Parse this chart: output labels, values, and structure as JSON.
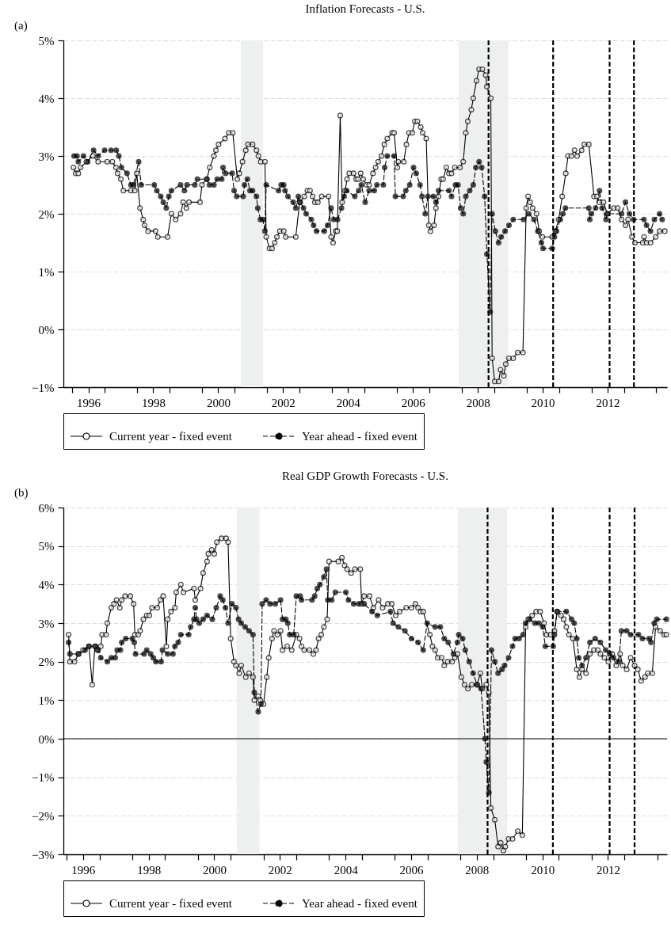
{
  "chart_data": [
    {
      "type": "line",
      "title": "Inflation Forecasts - U.S.",
      "annotations": [
        "(a)"
      ],
      "xlim": [
        1995.73,
        2014.33
      ],
      "xticks": [
        {
          "value": 1996,
          "label": null
        },
        {
          "value": 1996.5,
          "label": "1996"
        },
        {
          "value": 1997,
          "label": null
        },
        {
          "value": 1998,
          "label": null
        },
        {
          "value": 1998.5,
          "label": "1998"
        },
        {
          "value": 1999,
          "label": null
        },
        {
          "value": 2000,
          "label": null
        },
        {
          "value": 2000.5,
          "label": "2000"
        },
        {
          "value": 2001,
          "label": null
        },
        {
          "value": 2002,
          "label": null
        },
        {
          "value": 2002.5,
          "label": "2002"
        },
        {
          "value": 2003,
          "label": null
        },
        {
          "value": 2004,
          "label": null
        },
        {
          "value": 2004.5,
          "label": "2004"
        },
        {
          "value": 2005,
          "label": null
        },
        {
          "value": 2006,
          "label": null
        },
        {
          "value": 2006.5,
          "label": "2006"
        },
        {
          "value": 2007,
          "label": null
        },
        {
          "value": 2008,
          "label": null
        },
        {
          "value": 2008.5,
          "label": "2008"
        },
        {
          "value": 2009,
          "label": null
        },
        {
          "value": 2010,
          "label": null
        },
        {
          "value": 2010.5,
          "label": "2010"
        },
        {
          "value": 2011,
          "label": null
        },
        {
          "value": 2012,
          "label": null
        },
        {
          "value": 2012.5,
          "label": "2012"
        },
        {
          "value": 2013,
          "label": null
        },
        {
          "value": 2014,
          "label": null
        }
      ],
      "ylim": [
        -1,
        5
      ],
      "yticks": [
        {
          "value": -1,
          "label": "−1%"
        },
        {
          "value": 0,
          "label": "0%"
        },
        {
          "value": 1,
          "label": "1%"
        },
        {
          "value": 2,
          "label": "2%"
        },
        {
          "value": 3,
          "label": "3%"
        },
        {
          "value": 4,
          "label": "4%"
        },
        {
          "value": 5,
          "label": "5%"
        }
      ],
      "grid": "y",
      "legend": "bottom",
      "marker": "circle",
      "bands": [
        {
          "axis": "x",
          "from": 2001.2,
          "to": 2001.88,
          "color": "#eef0ef"
        },
        {
          "axis": "x",
          "from": 2007.91,
          "to": 2009.44,
          "color": "#eef0ef"
        }
      ],
      "ref_lines": [
        {
          "axis": "x",
          "value": 2008.83,
          "color": "#000000",
          "line_style": "dashed"
        },
        {
          "axis": "x",
          "value": 2010.82,
          "color": "#000000",
          "line_style": "dashed"
        },
        {
          "axis": "x",
          "value": 2012.56,
          "color": "#000000",
          "line_style": "dashed"
        },
        {
          "axis": "x",
          "value": 2013.31,
          "color": "#000000",
          "line_style": "dashed"
        }
      ],
      "series": [
        {
          "name": "Current year - fixed event",
          "color": "#000000",
          "line_style": "solid",
          "x": [
            1996.04,
            1996.11,
            1996.19,
            1996.26,
            1996.44,
            1996.64,
            1996.8,
            1997.08,
            1997.24,
            1997.35,
            1997.4,
            1997.5,
            1997.58,
            1997.81,
            1997.93,
            1997.99,
            1998.09,
            1998.19,
            1998.23,
            1998.34,
            1998.57,
            1998.64,
            1998.94,
            1999.06,
            1999.19,
            1999.34,
            1999.42,
            1999.52,
            1999.6,
            1999.94,
            2000.0,
            2000.15,
            2000.24,
            2000.37,
            2000.43,
            2000.51,
            2000.71,
            2000.83,
            2000.95,
            2001.09,
            2001.15,
            2001.25,
            2001.35,
            2001.42,
            2001.56,
            2001.68,
            2001.74,
            2001.81,
            2001.94,
            2001.98,
            2002.08,
            2002.16,
            2002.24,
            2002.31,
            2002.4,
            2002.52,
            2002.58,
            2002.89,
            2003.01,
            2003.15,
            2003.25,
            2003.33,
            2003.41,
            2003.48,
            2003.57,
            2003.69,
            2003.9,
            2003.98,
            2004.04,
            2004.12,
            2004.17,
            2004.26,
            2004.32,
            2004.41,
            2004.47,
            2004.54,
            2004.67,
            2004.75,
            2004.81,
            2004.89,
            2004.97,
            2005.07,
            2005.15,
            2005.27,
            2005.35,
            2005.43,
            2005.53,
            2005.62,
            2005.71,
            2005.86,
            2005.92,
            2006.02,
            2006.05,
            2006.22,
            2006.3,
            2006.38,
            2006.48,
            2006.56,
            2006.64,
            2006.74,
            2006.8,
            2006.91,
            2006.99,
            2007.04,
            2007.15,
            2007.21,
            2007.29,
            2007.37,
            2007.43,
            2007.53,
            2007.61,
            2007.69,
            2007.79,
            2007.95,
            2008.05,
            2008.13,
            2008.19,
            2008.3,
            2008.36,
            2008.46,
            2008.54,
            2008.64,
            2008.74,
            2008.78,
            2008.9,
            2008.94,
            2009.02,
            2009.14,
            2009.2,
            2009.3,
            2009.36,
            2009.46,
            2009.59,
            2009.73,
            2009.89,
            2009.99,
            2010.05,
            2010.11,
            2010.19,
            2010.31,
            2010.39,
            2010.49,
            2010.79,
            2010.89,
            2010.99,
            2011.1,
            2011.21,
            2011.28,
            2011.38,
            2011.48,
            2011.56,
            2011.7,
            2011.78,
            2011.92,
            2012.08,
            2012.17,
            2012.25,
            2012.37,
            2012.49,
            2012.69,
            2012.81,
            2012.93,
            2013.05,
            2013.13,
            2013.25,
            2013.34,
            2013.58,
            2013.62,
            2013.7,
            2013.82,
            2013.98,
            2014.1,
            2014.26
          ],
          "values": [
            2.8,
            2.7,
            2.7,
            2.8,
            2.9,
            3.0,
            2.9,
            2.9,
            2.9,
            2.8,
            2.7,
            2.6,
            2.4,
            2.4,
            2.4,
            2.7,
            2.1,
            1.9,
            1.8,
            1.7,
            1.7,
            1.6,
            1.6,
            2.0,
            1.9,
            2.0,
            2.2,
            2.1,
            2.2,
            2.2,
            2.5,
            2.6,
            2.8,
            3.0,
            3.1,
            3.2,
            3.3,
            3.4,
            3.4,
            2.6,
            2.7,
            2.9,
            3.1,
            3.2,
            3.2,
            3.1,
            3.0,
            2.9,
            2.9,
            1.6,
            1.4,
            1.4,
            1.5,
            1.6,
            1.7,
            1.7,
            1.6,
            1.6,
            2.2,
            2.3,
            2.4,
            2.4,
            2.3,
            2.2,
            2.2,
            2.3,
            2.3,
            1.6,
            1.5,
            1.7,
            1.7,
            3.7,
            2.2,
            2.4,
            2.6,
            2.7,
            2.7,
            2.6,
            2.6,
            2.7,
            2.6,
            2.5,
            2.5,
            2.7,
            2.8,
            2.9,
            3.0,
            3.2,
            3.3,
            3.4,
            3.4,
            2.8,
            2.9,
            2.9,
            3.2,
            3.4,
            3.4,
            3.6,
            3.6,
            3.5,
            3.4,
            3.3,
            1.8,
            1.7,
            1.8,
            2.1,
            2.3,
            2.6,
            2.6,
            2.8,
            2.7,
            2.7,
            2.8,
            2.8,
            2.9,
            3.4,
            3.6,
            3.8,
            4.0,
            4.3,
            4.5,
            4.5,
            4.4,
            4.2,
            4.0,
            -0.5,
            -0.9,
            -0.9,
            -0.7,
            -0.8,
            -0.6,
            -0.5,
            -0.5,
            -0.4,
            -0.4,
            2.1,
            2.3,
            2.2,
            2.1,
            2.0,
            1.7,
            1.6,
            1.6,
            1.7,
            1.9,
            2.3,
            2.7,
            3.0,
            3.0,
            3.1,
            3.0,
            3.1,
            3.2,
            3.2,
            2.3,
            2.3,
            2.2,
            2.2,
            2.0,
            2.1,
            2.1,
            1.9,
            1.8,
            1.9,
            1.6,
            1.5,
            1.5,
            1.6,
            1.5,
            1.5,
            1.6,
            1.7,
            1.7
          ]
        },
        {
          "name": "Year ahead - fixed event",
          "color": "#000000",
          "line_style": "dashed",
          "x": [
            1996.06,
            1996.15,
            1996.19,
            1996.35,
            1996.48,
            1996.66,
            1996.8,
            1997.0,
            1997.2,
            1997.36,
            1997.44,
            1997.52,
            1997.69,
            1997.81,
            1997.89,
            1998.05,
            1998.13,
            1998.53,
            1998.61,
            1998.73,
            1998.81,
            1998.9,
            1998.98,
            1999.06,
            1999.34,
            1999.46,
            1999.54,
            1999.78,
            1999.86,
            2000.15,
            2000.23,
            2000.37,
            2000.47,
            2000.61,
            2000.65,
            2000.73,
            2000.93,
            2000.99,
            2001.07,
            2001.27,
            2001.31,
            2001.4,
            2001.48,
            2001.56,
            2001.68,
            2001.72,
            2001.8,
            2001.88,
            2001.94,
            2001.98,
            2002.36,
            2002.44,
            2002.52,
            2002.56,
            2002.65,
            2002.81,
            2002.89,
            2002.97,
            2003.03,
            2003.13,
            2003.21,
            2003.37,
            2003.44,
            2003.53,
            2003.77,
            2003.87,
            2003.98,
            2004.06,
            2004.18,
            2004.3,
            2004.38,
            2004.46,
            2004.71,
            2004.83,
            2004.91,
            2005.03,
            2005.15,
            2005.31,
            2005.39,
            2005.59,
            2005.63,
            2005.71,
            2005.92,
            2005.96,
            2006.2,
            2006.28,
            2006.4,
            2006.52,
            2006.6,
            2006.72,
            2006.78,
            2006.88,
            2006.96,
            2007.13,
            2007.21,
            2007.29,
            2007.61,
            2007.69,
            2007.81,
            2007.89,
            2007.97,
            2008.05,
            2008.13,
            2008.25,
            2008.36,
            2008.44,
            2008.54,
            2008.62,
            2008.71,
            2008.78,
            2008.88,
            2008.94,
            2009.04,
            2009.14,
            2009.22,
            2009.34,
            2009.46,
            2009.59,
            2009.91,
            2010.07,
            2010.23,
            2010.35,
            2010.46,
            2010.51,
            2010.79,
            2010.86,
            2010.92,
            2011.04,
            2011.12,
            2011.2,
            2011.92,
            2011.95,
            2012.0,
            2012.13,
            2012.25,
            2012.33,
            2012.45,
            2012.49,
            2012.93,
            2013.05,
            2013.17,
            2013.3,
            2013.62,
            2013.7,
            2013.82,
            2013.94,
            2014.1,
            2014.18
          ],
          "values": [
            3.0,
            3.0,
            2.9,
            3.0,
            2.9,
            3.1,
            3.0,
            3.1,
            3.1,
            3.1,
            3.0,
            2.8,
            2.7,
            2.5,
            2.5,
            2.9,
            2.5,
            2.5,
            2.4,
            2.3,
            2.2,
            2.1,
            2.3,
            2.4,
            2.5,
            2.4,
            2.5,
            2.5,
            2.6,
            2.6,
            2.5,
            2.5,
            2.6,
            2.6,
            2.8,
            2.7,
            2.7,
            2.4,
            2.3,
            2.3,
            2.5,
            2.6,
            2.4,
            2.4,
            2.3,
            2.1,
            1.9,
            1.9,
            1.7,
            2.5,
            2.4,
            2.5,
            2.5,
            2.4,
            2.3,
            2.2,
            2.1,
            2.3,
            2.2,
            2.1,
            2.0,
            1.9,
            1.8,
            1.7,
            1.7,
            1.8,
            2.1,
            1.9,
            1.9,
            2.1,
            2.3,
            2.4,
            2.3,
            2.4,
            2.5,
            2.2,
            2.4,
            2.4,
            2.5,
            2.5,
            2.8,
            3.0,
            3.0,
            2.3,
            2.3,
            2.4,
            2.5,
            2.8,
            2.7,
            2.5,
            2.3,
            2.0,
            2.3,
            2.3,
            2.2,
            2.4,
            2.4,
            2.3,
            2.5,
            2.5,
            2.1,
            2.0,
            2.3,
            2.4,
            2.5,
            2.8,
            2.9,
            2.8,
            2.3,
            1.3,
            0.3,
            2.0,
            1.7,
            1.5,
            1.6,
            1.7,
            1.8,
            1.9,
            1.9,
            2.0,
            1.9,
            1.7,
            1.5,
            1.4,
            1.4,
            1.6,
            1.7,
            1.9,
            2.0,
            2.1,
            2.1,
            1.9,
            2.0,
            2.1,
            2.4,
            2.1,
            1.9,
            2.0,
            2.0,
            2.2,
            2.0,
            1.9,
            1.9,
            1.8,
            1.7,
            1.9,
            2.0,
            1.9
          ]
        }
      ]
    },
    {
      "type": "line",
      "title": "Real GDP Growth Forecasts - U.S.",
      "annotations": [
        "(b)"
      ],
      "xlim": [
        1995.9,
        2014.3
      ],
      "xticks": [
        {
          "value": 1996,
          "label": null
        },
        {
          "value": 1996.5,
          "label": "1996"
        },
        {
          "value": 1997,
          "label": null
        },
        {
          "value": 1998,
          "label": null
        },
        {
          "value": 1998.5,
          "label": "1998"
        },
        {
          "value": 1999,
          "label": null
        },
        {
          "value": 2000,
          "label": null
        },
        {
          "value": 2000.5,
          "label": "2000"
        },
        {
          "value": 2001,
          "label": null
        },
        {
          "value": 2002,
          "label": null
        },
        {
          "value": 2002.5,
          "label": "2002"
        },
        {
          "value": 2003,
          "label": null
        },
        {
          "value": 2004,
          "label": null
        },
        {
          "value": 2004.5,
          "label": "2004"
        },
        {
          "value": 2005,
          "label": null
        },
        {
          "value": 2006,
          "label": null
        },
        {
          "value": 2006.5,
          "label": "2006"
        },
        {
          "value": 2007,
          "label": null
        },
        {
          "value": 2008,
          "label": null
        },
        {
          "value": 2008.5,
          "label": "2008"
        },
        {
          "value": 2009,
          "label": null
        },
        {
          "value": 2010,
          "label": null
        },
        {
          "value": 2010.5,
          "label": "2010"
        },
        {
          "value": 2011,
          "label": null
        },
        {
          "value": 2012,
          "label": null
        },
        {
          "value": 2012.5,
          "label": "2012"
        },
        {
          "value": 2013,
          "label": null
        },
        {
          "value": 2014,
          "label": null
        }
      ],
      "ylim": [
        -3,
        6
      ],
      "yticks": [
        {
          "value": -3,
          "label": "−3%"
        },
        {
          "value": -2,
          "label": "−2%"
        },
        {
          "value": -1,
          "label": "−1%"
        },
        {
          "value": 0,
          "label": "0%"
        },
        {
          "value": 1,
          "label": "1%"
        },
        {
          "value": 2,
          "label": "2%"
        },
        {
          "value": 3,
          "label": "3%"
        },
        {
          "value": 4,
          "label": "4%"
        },
        {
          "value": 5,
          "label": "5%"
        },
        {
          "value": 6,
          "label": "6%"
        }
      ],
      "grid": "y",
      "legend": "bottom",
      "marker": "circle",
      "bands": [
        {
          "axis": "x",
          "from": 2001.18,
          "to": 2001.88,
          "color": "#eef0ef"
        },
        {
          "axis": "x",
          "from": 2007.92,
          "to": 2009.43,
          "color": "#eef0ef"
        }
      ],
      "ref_lines": [
        {
          "axis": "y",
          "value": 0,
          "color": "#000000",
          "line_style": "solid"
        },
        {
          "axis": "x",
          "value": 2008.83,
          "color": "#000000",
          "line_style": "dashed"
        },
        {
          "axis": "x",
          "value": 2010.82,
          "color": "#000000",
          "line_style": "dashed"
        },
        {
          "axis": "x",
          "value": 2012.55,
          "color": "#000000",
          "line_style": "dashed"
        },
        {
          "axis": "x",
          "value": 2013.31,
          "color": "#000000",
          "line_style": "dashed"
        }
      ],
      "series": [
        {
          "name": "Current year - fixed event",
          "color": "#000000",
          "line_style": "solid",
          "x": [
            1996.06,
            1996.1,
            1996.24,
            1996.36,
            1996.5,
            1996.68,
            1996.78,
            1996.86,
            1996.94,
            1997.04,
            1997.08,
            1997.2,
            1997.24,
            1997.36,
            1997.44,
            1997.52,
            1997.62,
            1997.68,
            1997.78,
            1997.94,
            1998.04,
            1998.08,
            1998.18,
            1998.24,
            1998.34,
            1998.44,
            1998.52,
            1998.6,
            1998.76,
            1998.86,
            1998.94,
            1999.04,
            1999.08,
            1999.18,
            1999.3,
            1999.34,
            1999.48,
            1999.56,
            1999.88,
            1999.92,
            2000.08,
            2000.16,
            2000.28,
            2000.32,
            2000.42,
            2000.5,
            2000.58,
            2000.72,
            2000.86,
            2000.92,
            2001.0,
            2001.1,
            2001.16,
            2001.26,
            2001.32,
            2001.46,
            2001.56,
            2001.68,
            2001.72,
            2001.84,
            2001.9,
            2002.0,
            2002.1,
            2002.16,
            2002.26,
            2002.32,
            2002.42,
            2002.52,
            2002.58,
            2002.72,
            2002.86,
            2003.0,
            2003.1,
            2003.16,
            2003.24,
            2003.4,
            2003.52,
            2003.6,
            2003.68,
            2003.76,
            2003.84,
            2003.94,
            2004.0,
            2004.28,
            2004.39,
            2004.47,
            2004.55,
            2004.67,
            2004.79,
            2004.95,
            2004.99,
            2005.07,
            2005.23,
            2005.35,
            2005.51,
            2005.63,
            2005.79,
            2005.91,
            2006.03,
            2006.15,
            2006.35,
            2006.51,
            2006.63,
            2006.71,
            2006.79,
            2006.87,
            2007.07,
            2007.15,
            2007.23,
            2007.31,
            2007.43,
            2007.51,
            2007.61,
            2007.75,
            2007.83,
            2007.91,
            2008.03,
            2008.13,
            2008.23,
            2008.35,
            2008.51,
            2008.61,
            2008.67,
            2008.79,
            2008.87,
            2008.93,
            2009.05,
            2009.15,
            2009.23,
            2009.31,
            2009.37,
            2009.47,
            2009.59,
            2009.75,
            2009.89,
            2009.99,
            2010.07,
            2010.19,
            2010.31,
            2010.43,
            2010.55,
            2010.63,
            2010.75,
            2010.87,
            2010.95,
            2011.07,
            2011.15,
            2011.23,
            2011.31,
            2011.43,
            2011.55,
            2011.63,
            2011.71,
            2011.83,
            2011.95,
            2012.07,
            2012.19,
            2012.27,
            2012.39,
            2012.51,
            2012.63,
            2012.75,
            2012.87,
            2012.95,
            2013.07,
            2013.19,
            2013.31,
            2013.41,
            2013.51,
            2013.63,
            2013.71,
            2013.85,
            2013.95,
            2014.09,
            2014.21,
            2014.28
          ],
          "values": [
            2.7,
            2.0,
            2.0,
            2.2,
            2.3,
            2.4,
            1.4,
            2.4,
            2.3,
            2.4,
            2.7,
            2.7,
            3.0,
            3.4,
            3.5,
            3.6,
            3.4,
            3.6,
            3.7,
            3.7,
            3.5,
            2.7,
            2.7,
            2.8,
            3.1,
            3.2,
            3.2,
            3.4,
            3.4,
            3.6,
            3.7,
            2.4,
            3.1,
            3.3,
            3.4,
            3.8,
            4.0,
            3.8,
            3.9,
            3.6,
            3.9,
            4.3,
            4.6,
            4.8,
            4.9,
            4.8,
            5.1,
            5.2,
            5.2,
            5.1,
            2.6,
            2.0,
            1.9,
            1.7,
            1.9,
            1.6,
            1.7,
            1.6,
            1.0,
            1.1,
            1.0,
            0.9,
            1.6,
            2.1,
            2.6,
            2.8,
            2.7,
            2.8,
            2.3,
            2.4,
            2.3,
            2.7,
            2.6,
            2.4,
            2.3,
            2.3,
            2.2,
            2.3,
            2.6,
            2.7,
            2.9,
            3.1,
            4.6,
            4.6,
            4.7,
            4.5,
            4.4,
            4.3,
            4.4,
            4.4,
            3.5,
            3.7,
            3.7,
            3.4,
            3.6,
            3.4,
            3.5,
            3.5,
            3.2,
            3.3,
            3.4,
            3.4,
            3.5,
            3.4,
            3.3,
            3.3,
            2.7,
            2.4,
            2.3,
            2.1,
            2.1,
            1.9,
            2.0,
            2.0,
            2.1,
            2.2,
            1.6,
            1.4,
            1.3,
            1.4,
            1.4,
            1.7,
            1.3,
            1.4,
            1.2,
            -1.8,
            -2.1,
            -2.8,
            -2.7,
            -2.9,
            -2.8,
            -2.6,
            -2.6,
            -2.4,
            -2.5,
            2.9,
            3.1,
            3.2,
            3.3,
            3.3,
            3.0,
            2.7,
            2.7,
            2.8,
            3.3,
            3.2,
            3.1,
            2.9,
            2.7,
            2.6,
            1.8,
            1.6,
            1.8,
            1.7,
            2.2,
            2.3,
            2.3,
            2.2,
            2.1,
            2.0,
            2.2,
            1.9,
            2.2,
            1.9,
            1.8,
            2.1,
            1.9,
            1.8,
            1.5,
            1.6,
            1.7,
            1.7,
            2.9,
            2.8,
            2.7,
            2.7
          ]
        },
        {
          "name": "Year ahead - fixed event",
          "color": "#000000",
          "line_style": "dashed",
          "x": [
            1996.06,
            1996.1,
            1996.36,
            1996.56,
            1996.68,
            1996.88,
            1996.96,
            1997.04,
            1997.24,
            1997.36,
            1997.48,
            1997.54,
            1997.64,
            1997.68,
            1997.8,
            1998.0,
            1998.06,
            1998.1,
            1998.36,
            1998.44,
            1998.56,
            1998.64,
            1998.72,
            1998.88,
            1998.92,
            1999.08,
            1999.24,
            1999.3,
            1999.4,
            1999.48,
            1999.72,
            1999.78,
            1999.88,
            1999.92,
            1999.96,
            2000.04,
            2000.16,
            2000.28,
            2000.44,
            2000.56,
            2000.68,
            2000.76,
            2000.84,
            2000.92,
            2001.04,
            2001.16,
            2001.24,
            2001.32,
            2001.44,
            2001.56,
            2001.68,
            2001.72,
            2001.84,
            2001.92,
            2001.96,
            2002.08,
            2002.2,
            2002.36,
            2002.52,
            2002.58,
            2002.68,
            2002.74,
            2002.8,
            2002.92,
            2003.0,
            2003.12,
            2003.16,
            2003.48,
            2003.56,
            2003.64,
            2003.72,
            2003.84,
            2003.92,
            2003.96,
            2004.08,
            2004.19,
            2004.51,
            2004.59,
            2004.75,
            2004.91,
            2005.07,
            2005.31,
            2005.47,
            2005.87,
            2005.95,
            2006.11,
            2006.31,
            2006.51,
            2006.71,
            2006.87,
            2006.99,
            2007.23,
            2007.39,
            2007.51,
            2007.63,
            2007.79,
            2007.91,
            2007.95,
            2008.07,
            2008.15,
            2008.27,
            2008.39,
            2008.51,
            2008.63,
            2008.75,
            2008.79,
            2008.87,
            2008.95,
            2009.05,
            2009.15,
            2009.27,
            2009.35,
            2009.47,
            2009.59,
            2009.67,
            2009.79,
            2009.91,
            2009.99,
            2010.11,
            2010.27,
            2010.39,
            2010.51,
            2010.59,
            2010.83,
            2010.87,
            2010.95,
            2011.23,
            2011.39,
            2011.47,
            2011.55,
            2011.61,
            2011.71,
            2011.83,
            2011.95,
            2012.11,
            2012.27,
            2012.43,
            2012.55,
            2012.67,
            2012.83,
            2012.91,
            2013.07,
            2013.19,
            2013.43,
            2013.55,
            2013.75,
            2013.81,
            2013.91,
            2013.99,
            2014.28
          ],
          "values": [
            2.5,
            2.2,
            2.2,
            2.3,
            2.4,
            2.4,
            2.3,
            2.1,
            2.0,
            2.1,
            2.1,
            2.3,
            2.3,
            2.5,
            2.6,
            2.6,
            2.5,
            2.2,
            2.2,
            2.3,
            2.2,
            2.1,
            2.0,
            2.0,
            2.3,
            2.2,
            2.2,
            2.4,
            2.5,
            2.7,
            2.7,
            2.9,
            3.1,
            3.4,
            3.1,
            3.0,
            3.1,
            3.2,
            3.1,
            3.4,
            3.7,
            3.6,
            3.4,
            3.0,
            3.5,
            3.4,
            3.1,
            3.0,
            2.9,
            2.8,
            2.7,
            1.2,
            0.7,
            0.9,
            3.5,
            3.6,
            3.5,
            3.5,
            3.6,
            3.1,
            3.1,
            3.0,
            2.7,
            2.7,
            3.7,
            3.7,
            3.6,
            3.6,
            3.7,
            3.9,
            4.0,
            4.2,
            4.4,
            3.6,
            3.6,
            3.8,
            3.8,
            3.6,
            3.5,
            3.5,
            3.5,
            3.3,
            3.2,
            3.3,
            3.0,
            2.9,
            2.8,
            2.6,
            2.5,
            2.3,
            3.0,
            2.9,
            2.9,
            2.6,
            2.5,
            2.2,
            2.5,
            2.7,
            2.6,
            2.3,
            2.0,
            1.7,
            1.4,
            1.3,
            0,
            -0.6,
            -1.4,
            2.3,
            2.0,
            1.7,
            1.8,
            1.9,
            2.1,
            2.4,
            2.6,
            2.6,
            2.7,
            3.0,
            3.1,
            3.0,
            3.0,
            2.9,
            2.4,
            2.4,
            2.7,
            3.3,
            3.3,
            3.1,
            3.0,
            2.6,
            2.1,
            1.9,
            2.1,
            2.5,
            2.6,
            2.5,
            2.3,
            2.2,
            2.1,
            2.0,
            2.8,
            2.8,
            2.7,
            2.7,
            2.6,
            2.6,
            2.5,
            3.0,
            3.1,
            3.1
          ]
        }
      ]
    }
  ]
}
